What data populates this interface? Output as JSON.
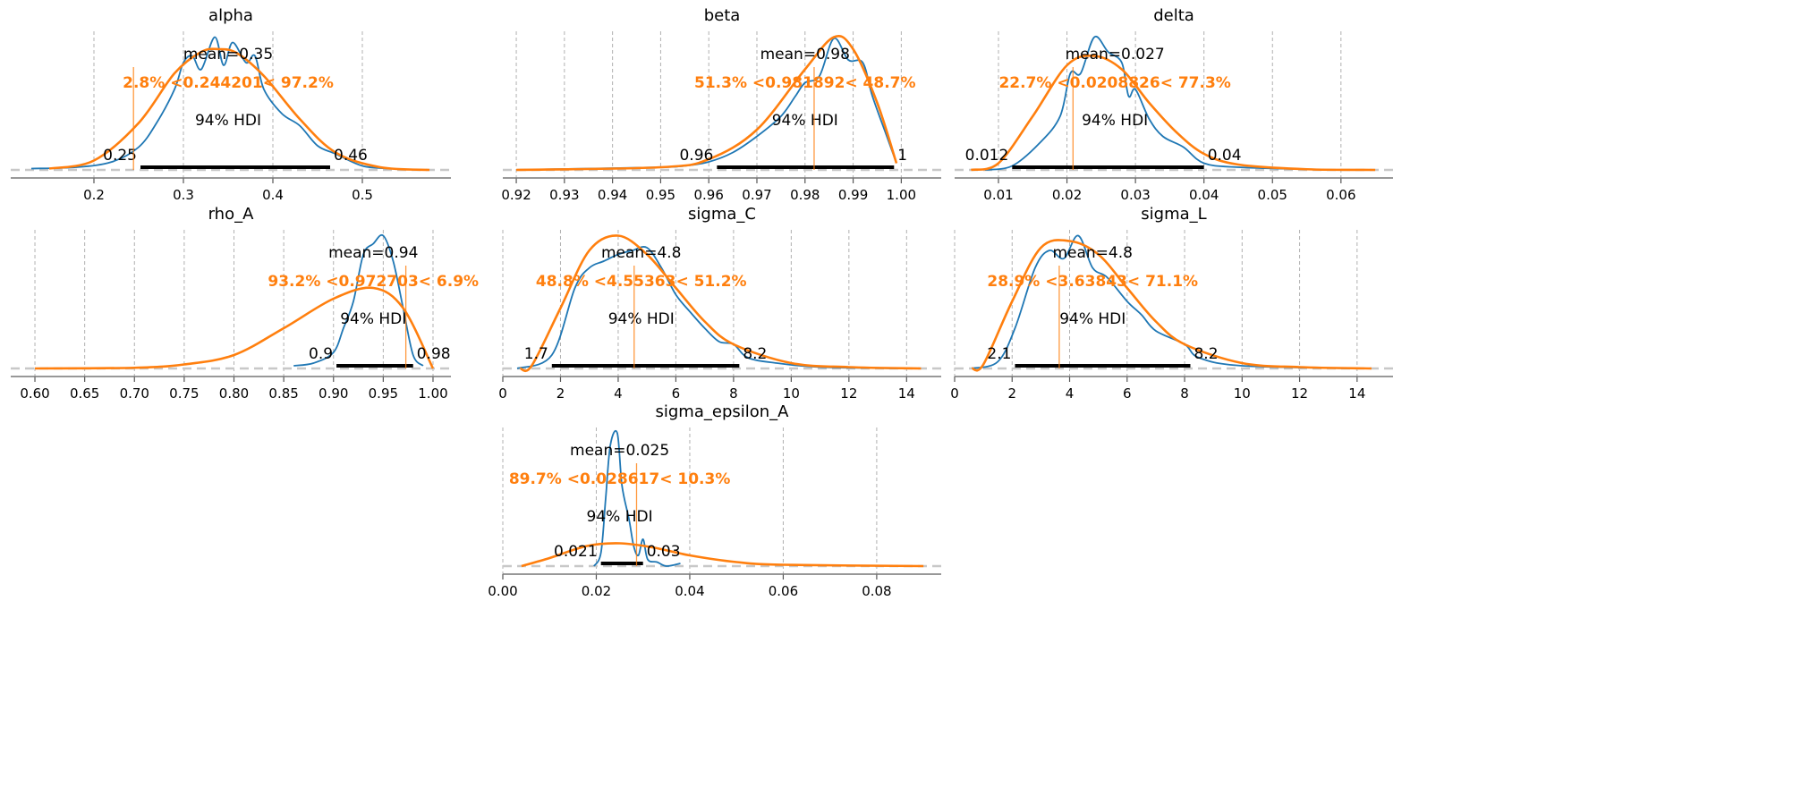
{
  "colors": {
    "posterior": "#1f77b4",
    "prior": "#ff7f0e",
    "reference": "#ff7f0e",
    "hdi": "#000000",
    "grid": "#b0b0b0"
  },
  "chart_data": [
    {
      "type": "line",
      "title": "alpha",
      "xlim": [
        0.107,
        0.599
      ],
      "ticks": [
        0.2,
        0.3,
        0.4,
        0.5
      ],
      "tick_labels": [
        "0.2",
        "0.3",
        "0.4",
        "0.5"
      ],
      "grid": "x",
      "mean_label": "mean=0.35",
      "mean": 0.35,
      "hdi_label": "94% HDI",
      "hdi": [
        0.252,
        0.464
      ],
      "hdi_labels": [
        "0.25",
        "0.46"
      ],
      "ref_value": 0.244201,
      "ref_label": "2.8% <0.244201< 97.2%",
      "posterior": {
        "x": [
          0.13,
          0.18,
          0.22,
          0.25,
          0.27,
          0.29,
          0.3,
          0.31,
          0.32,
          0.335,
          0.345,
          0.355,
          0.37,
          0.38,
          0.39,
          0.41,
          0.43,
          0.45,
          0.47,
          0.5,
          0.53
        ],
        "y": [
          0.01,
          0.02,
          0.06,
          0.17,
          0.35,
          0.6,
          0.8,
          0.85,
          0.75,
          0.99,
          0.78,
          0.95,
          0.8,
          0.85,
          0.6,
          0.42,
          0.33,
          0.18,
          0.12,
          0.03,
          0.01
        ]
      },
      "prior": {
        "x": [
          0.15,
          0.2,
          0.25,
          0.29,
          0.32,
          0.34,
          0.36,
          0.39,
          0.43,
          0.47,
          0.52,
          0.575
        ],
        "y": [
          0.01,
          0.07,
          0.35,
          0.72,
          0.88,
          0.9,
          0.87,
          0.7,
          0.38,
          0.13,
          0.02,
          0.0
        ]
      }
    },
    {
      "type": "line",
      "title": "beta",
      "xlim": [
        0.9172,
        1.0083
      ],
      "ticks": [
        0.92,
        0.93,
        0.94,
        0.95,
        0.96,
        0.97,
        0.98,
        0.99,
        1.0
      ],
      "tick_labels": [
        "0.92",
        "0.93",
        "0.94",
        "0.95",
        "0.96",
        "0.97",
        "0.98",
        "0.99",
        "1.00"
      ],
      "grid": "x",
      "mean_label": "mean=0.98",
      "mean": 0.98,
      "hdi_label": "94% HDI",
      "hdi": [
        0.9617,
        0.9985
      ],
      "hdi_labels": [
        "0.96",
        "1"
      ],
      "ref_value": 0.981892,
      "ref_label": "51.3% <0.981892< 48.7%",
      "posterior": {
        "x": [
          0.92,
          0.935,
          0.95,
          0.955,
          0.96,
          0.965,
          0.97,
          0.975,
          0.978,
          0.98,
          0.983,
          0.986,
          0.989,
          0.992,
          0.994,
          0.997,
          0.999
        ],
        "y": [
          0.0,
          0.01,
          0.02,
          0.03,
          0.06,
          0.13,
          0.25,
          0.4,
          0.55,
          0.65,
          0.7,
          0.98,
          0.82,
          0.8,
          0.55,
          0.25,
          0.05
        ]
      },
      "prior": {
        "x": [
          0.92,
          0.95,
          0.96,
          0.97,
          0.98,
          0.986,
          0.99,
          0.995,
          0.999
        ],
        "y": [
          0.0,
          0.02,
          0.08,
          0.3,
          0.75,
          0.99,
          0.9,
          0.5,
          0.05
        ]
      }
    },
    {
      "type": "line",
      "title": "delta",
      "xlim": [
        0.0036,
        0.0676
      ],
      "ticks": [
        0.01,
        0.02,
        0.03,
        0.04,
        0.05,
        0.06
      ],
      "tick_labels": [
        "0.01",
        "0.02",
        "0.03",
        "0.04",
        "0.05",
        "0.06"
      ],
      "grid": "x",
      "mean_label": "mean=0.027",
      "mean": 0.027,
      "hdi_label": "94% HDI",
      "hdi": [
        0.012,
        0.04
      ],
      "hdi_labels": [
        "0.012",
        "0.04"
      ],
      "ref_value": 0.0208826,
      "ref_label": "22.7% <0.0208826< 77.3%",
      "posterior": {
        "x": [
          0.008,
          0.012,
          0.016,
          0.019,
          0.0205,
          0.022,
          0.024,
          0.026,
          0.028,
          0.029,
          0.03,
          0.032,
          0.034,
          0.037,
          0.04,
          0.045,
          0.055
        ],
        "y": [
          0.0,
          0.03,
          0.2,
          0.4,
          0.72,
          0.72,
          0.99,
          0.88,
          0.8,
          0.55,
          0.6,
          0.38,
          0.25,
          0.17,
          0.05,
          0.02,
          0.005
        ]
      },
      "prior": {
        "x": [
          0.006,
          0.01,
          0.015,
          0.02,
          0.024,
          0.028,
          0.032,
          0.036,
          0.04,
          0.045,
          0.055,
          0.065
        ],
        "y": [
          0.0,
          0.05,
          0.4,
          0.78,
          0.85,
          0.75,
          0.5,
          0.28,
          0.12,
          0.04,
          0.005,
          0.0
        ]
      }
    },
    {
      "type": "line",
      "title": "rho_A",
      "xlim": [
        0.5757,
        1.018
      ],
      "ticks": [
        0.6,
        0.65,
        0.7,
        0.75,
        0.8,
        0.85,
        0.9,
        0.95,
        1.0
      ],
      "tick_labels": [
        "0.60",
        "0.65",
        "0.70",
        "0.75",
        "0.80",
        "0.85",
        "0.90",
        "0.95",
        "1.00"
      ],
      "grid": "x",
      "mean_label": "mean=0.94",
      "mean": 0.94,
      "hdi_label": "94% HDI",
      "hdi": [
        0.903,
        0.98
      ],
      "hdi_labels": [
        "0.9",
        "0.98"
      ],
      "ref_value": 0.972703,
      "ref_label": "93.2% <0.972703< 6.9%",
      "posterior": {
        "x": [
          0.86,
          0.88,
          0.9,
          0.91,
          0.92,
          0.93,
          0.94,
          0.95,
          0.96,
          0.97,
          0.98,
          0.99
        ],
        "y": [
          0.02,
          0.04,
          0.12,
          0.3,
          0.5,
          0.85,
          0.93,
          0.99,
          0.8,
          0.45,
          0.1,
          0.02
        ]
      },
      "prior": {
        "x": [
          0.6,
          0.7,
          0.75,
          0.8,
          0.85,
          0.9,
          0.94,
          0.97,
          1.0
        ],
        "y": [
          0.0,
          0.005,
          0.03,
          0.1,
          0.3,
          0.52,
          0.6,
          0.45,
          0.0
        ]
      }
    },
    {
      "type": "line",
      "title": "sigma_C",
      "xlim": [
        0,
        15.2
      ],
      "ticks": [
        0,
        2,
        4,
        6,
        8,
        10,
        12,
        14
      ],
      "tick_labels": [
        "0",
        "2",
        "4",
        "6",
        "8",
        "10",
        "12",
        "14"
      ],
      "grid": "x",
      "mean_label": "mean=4.8",
      "mean": 4.8,
      "hdi_label": "94% HDI",
      "hdi": [
        1.7,
        8.2
      ],
      "hdi_labels": [
        "1.7",
        "8.2"
      ],
      "ref_value": 4.55363,
      "ref_label": "48.8% <4.55363< 51.2%",
      "posterior": {
        "x": [
          0.5,
          1.7,
          2.5,
          3,
          3.5,
          4,
          4.5,
          5,
          5.5,
          6,
          6.5,
          7,
          7.5,
          8,
          8.5,
          9.5,
          11,
          14
        ],
        "y": [
          0.0,
          0.1,
          0.6,
          0.75,
          0.8,
          0.85,
          0.88,
          0.9,
          0.75,
          0.55,
          0.42,
          0.3,
          0.2,
          0.18,
          0.08,
          0.04,
          0.01,
          0.0
        ]
      },
      "prior": {
        "x": [
          0.6,
          1,
          2,
          3,
          4,
          5,
          6,
          7,
          8,
          10,
          12,
          14.5
        ],
        "y": [
          0.0,
          0.02,
          0.45,
          0.88,
          0.99,
          0.85,
          0.6,
          0.35,
          0.18,
          0.04,
          0.01,
          0.0
        ]
      }
    },
    {
      "type": "line",
      "title": "sigma_L",
      "xlim": [
        0,
        15.25
      ],
      "ticks": [
        0,
        2,
        4,
        6,
        8,
        10,
        12,
        14
      ],
      "tick_labels": [
        "0",
        "2",
        "4",
        "6",
        "8",
        "10",
        "12",
        "14"
      ],
      "grid": "x",
      "mean_label": "mean=4.8",
      "mean": 4.8,
      "hdi_label": "94% HDI",
      "hdi": [
        2.1,
        8.2
      ],
      "hdi_labels": [
        "2.1",
        "8.2"
      ],
      "ref_value": 3.63843,
      "ref_label": "28.9% <3.63843< 71.1%",
      "posterior": {
        "x": [
          0.6,
          1.5,
          2.1,
          2.8,
          3.3,
          3.8,
          4.3,
          4.8,
          5.3,
          6,
          6.5,
          7,
          8,
          8.5,
          10,
          14
        ],
        "y": [
          0.0,
          0.05,
          0.3,
          0.75,
          0.88,
          0.82,
          0.99,
          0.75,
          0.68,
          0.5,
          0.4,
          0.28,
          0.18,
          0.08,
          0.02,
          0.0
        ]
      },
      "prior": {
        "x": [
          0.6,
          1,
          2,
          3,
          4,
          5,
          6,
          7,
          8,
          10,
          12,
          14.5
        ],
        "y": [
          0.0,
          0.03,
          0.5,
          0.9,
          0.95,
          0.85,
          0.6,
          0.35,
          0.18,
          0.04,
          0.01,
          0.0
        ]
      }
    },
    {
      "type": "line",
      "title": "sigma_epsilon_A",
      "xlim": [
        0,
        0.0938
      ],
      "ticks": [
        0,
        0.02,
        0.04,
        0.06,
        0.08
      ],
      "tick_labels": [
        "0.00",
        "0.02",
        "0.04",
        "0.06",
        "0.08"
      ],
      "grid": "x",
      "mean_label": "mean=0.025",
      "mean": 0.025,
      "hdi_label": "94% HDI",
      "hdi": [
        0.021,
        0.03
      ],
      "hdi_labels": [
        "0.021",
        "0.03"
      ],
      "ref_value": 0.028617,
      "ref_label": "89.7% <0.028617< 10.3%",
      "posterior": {
        "x": [
          0.0195,
          0.021,
          0.022,
          0.023,
          0.0245,
          0.0255,
          0.027,
          0.028,
          0.029,
          0.03,
          0.031,
          0.033,
          0.035,
          0.038
        ],
        "y": [
          0.0,
          0.1,
          0.5,
          0.9,
          0.99,
          0.6,
          0.35,
          0.15,
          0.08,
          0.2,
          0.05,
          0.03,
          0.0,
          0.02
        ]
      },
      "prior": {
        "x": [
          0.004,
          0.01,
          0.018,
          0.025,
          0.032,
          0.04,
          0.05,
          0.06,
          0.09
        ],
        "y": [
          0.0,
          0.06,
          0.15,
          0.17,
          0.14,
          0.08,
          0.03,
          0.01,
          0.0
        ]
      }
    }
  ]
}
